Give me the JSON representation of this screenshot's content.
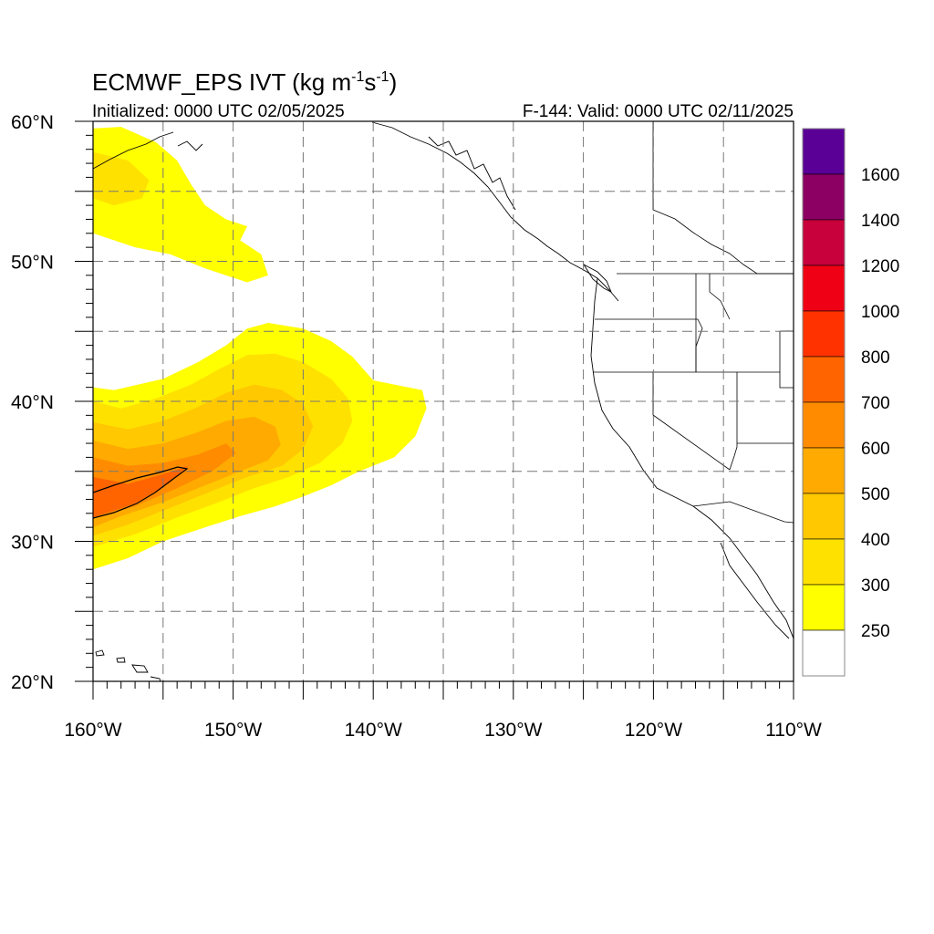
{
  "title": {
    "prefix": "ECMWF_EPS IVT (kg m",
    "sup1": "-1",
    "mid": "s",
    "sup2": "-1",
    "suffix": ")"
  },
  "initialized": "Initialized: 0000 UTC 02/05/2025",
  "valid": "F-144: Valid: 0000 UTC 02/11/2025",
  "axes": {
    "lon_range": [
      -160,
      -110
    ],
    "lat_range": [
      20,
      60
    ],
    "x_ticks": [
      {
        "value": -160,
        "label": "160°W"
      },
      {
        "value": -150,
        "label": "150°W"
      },
      {
        "value": -140,
        "label": "140°W"
      },
      {
        "value": -130,
        "label": "130°W"
      },
      {
        "value": -120,
        "label": "120°W"
      },
      {
        "value": -110,
        "label": "110°W"
      }
    ],
    "y_ticks": [
      {
        "value": 20,
        "label": "20°N"
      },
      {
        "value": 30,
        "label": "30°N"
      },
      {
        "value": 40,
        "label": "40°N"
      },
      {
        "value": 50,
        "label": "50°N"
      },
      {
        "value": 60,
        "label": "60°N"
      }
    ],
    "grid_lons": [
      -155,
      -150,
      -145,
      -140,
      -135,
      -130,
      -125,
      -120,
      -115
    ],
    "grid_lats": [
      25,
      30,
      35,
      40,
      45,
      50,
      55
    ],
    "grid": "dashed"
  },
  "colorbar": {
    "levels": [
      {
        "label": "250",
        "color": "#ffffff"
      },
      {
        "label": "300",
        "color": "#ffff00"
      },
      {
        "label": "400",
        "color": "#ffe100"
      },
      {
        "label": "500",
        "color": "#ffc800"
      },
      {
        "label": "600",
        "color": "#ffaa00"
      },
      {
        "label": "700",
        "color": "#ff8c00"
      },
      {
        "label": "800",
        "color": "#ff6400"
      },
      {
        "label": "1000",
        "color": "#ff3200"
      },
      {
        "label": "1200",
        "color": "#f00014"
      },
      {
        "label": "1400",
        "color": "#c8003c"
      },
      {
        "label": "1600",
        "color": "#8c0064"
      },
      {
        "label": "",
        "color": "#5a0096"
      }
    ],
    "placement": "right"
  },
  "ivt_regions": [
    {
      "level": 1,
      "points": [
        [
          -160,
          59.5
        ],
        [
          -158,
          59.6
        ],
        [
          -155.5,
          58.5
        ],
        [
          -154,
          57.2
        ],
        [
          -153,
          55.5
        ],
        [
          -152,
          54
        ],
        [
          -150.5,
          53
        ],
        [
          -149,
          52.5
        ],
        [
          -149.5,
          51.5
        ],
        [
          -148,
          50.5
        ],
        [
          -147.5,
          49
        ],
        [
          -149,
          48.5
        ],
        [
          -152,
          49.5
        ],
        [
          -154.5,
          50.5
        ],
        [
          -157,
          51
        ],
        [
          -160,
          52
        ]
      ]
    },
    {
      "level": 2,
      "points": [
        [
          -160,
          57.8
        ],
        [
          -157.5,
          57.2
        ],
        [
          -156,
          55.8
        ],
        [
          -156.5,
          54.5
        ],
        [
          -158.5,
          54
        ],
        [
          -160,
          54.5
        ]
      ]
    },
    {
      "level": 1,
      "points": [
        [
          -160,
          41
        ],
        [
          -158.5,
          40.8
        ],
        [
          -155,
          41.6
        ],
        [
          -152.5,
          42.8
        ],
        [
          -150.5,
          44
        ],
        [
          -149,
          45.2
        ],
        [
          -147.5,
          45.6
        ],
        [
          -145,
          45.2
        ],
        [
          -143,
          44.3
        ],
        [
          -141.5,
          43.2
        ],
        [
          -140,
          41.5
        ],
        [
          -138.5,
          41.2
        ],
        [
          -136.5,
          40.8
        ],
        [
          -136.2,
          39.5
        ],
        [
          -137,
          37.5
        ],
        [
          -138.5,
          36
        ],
        [
          -141,
          35
        ],
        [
          -143,
          34
        ],
        [
          -145,
          33.2
        ],
        [
          -147,
          32.5
        ],
        [
          -149.5,
          31.8
        ],
        [
          -152,
          31
        ],
        [
          -155,
          30
        ],
        [
          -157.5,
          28.8
        ],
        [
          -160,
          28
        ]
      ]
    },
    {
      "level": 2,
      "points": [
        [
          -160,
          40
        ],
        [
          -158,
          39.5
        ],
        [
          -155.5,
          40.2
        ],
        [
          -153,
          41.2
        ],
        [
          -151,
          42.3
        ],
        [
          -149,
          43.3
        ],
        [
          -147,
          43.4
        ],
        [
          -145,
          42.8
        ],
        [
          -143,
          41.6
        ],
        [
          -141.8,
          40.2
        ],
        [
          -141.5,
          38.6
        ],
        [
          -142.2,
          37
        ],
        [
          -143.8,
          35.6
        ],
        [
          -146,
          34.6
        ],
        [
          -148.5,
          33.8
        ],
        [
          -151,
          32.8
        ],
        [
          -154,
          31.7
        ],
        [
          -157,
          30.5
        ],
        [
          -160,
          29.6
        ]
      ]
    },
    {
      "level": 3,
      "points": [
        [
          -160,
          38.5
        ],
        [
          -157.5,
          38
        ],
        [
          -155,
          38.6
        ],
        [
          -152.5,
          39.6
        ],
        [
          -150.5,
          40.6
        ],
        [
          -148.5,
          41.2
        ],
        [
          -146.5,
          40.8
        ],
        [
          -145,
          39.8
        ],
        [
          -144.3,
          38.2
        ],
        [
          -145,
          36.6
        ],
        [
          -146.5,
          35.4
        ],
        [
          -149,
          34.6
        ],
        [
          -151.5,
          33.6
        ],
        [
          -154.5,
          32.4
        ],
        [
          -157.5,
          31.2
        ],
        [
          -160,
          30.4
        ]
      ]
    },
    {
      "level": 4,
      "points": [
        [
          -160,
          37.2
        ],
        [
          -157.5,
          36.6
        ],
        [
          -155,
          37
        ],
        [
          -152.5,
          37.8
        ],
        [
          -150.5,
          38.6
        ],
        [
          -148.5,
          38.9
        ],
        [
          -147,
          38.2
        ],
        [
          -146.6,
          36.9
        ],
        [
          -147.5,
          35.8
        ],
        [
          -149.5,
          35
        ],
        [
          -152,
          34
        ],
        [
          -155,
          32.8
        ],
        [
          -158,
          31.8
        ],
        [
          -160,
          31
        ]
      ]
    },
    {
      "level": 5,
      "points": [
        [
          -160,
          36
        ],
        [
          -157.5,
          35.4
        ],
        [
          -155,
          35.6
        ],
        [
          -152.5,
          36.2
        ],
        [
          -150.5,
          37
        ],
        [
          -149.8,
          36.3
        ],
        [
          -151.5,
          35
        ],
        [
          -154,
          33.8
        ],
        [
          -157,
          32.5
        ],
        [
          -160,
          31.6
        ]
      ]
    },
    {
      "level": 6,
      "points": [
        [
          -160,
          34.6
        ],
        [
          -157.5,
          34.1
        ],
        [
          -155,
          34.8
        ],
        [
          -153.2,
          35.4
        ],
        [
          -154.5,
          34.2
        ],
        [
          -157,
          32.7
        ],
        [
          -160,
          31.7
        ]
      ]
    }
  ]
}
